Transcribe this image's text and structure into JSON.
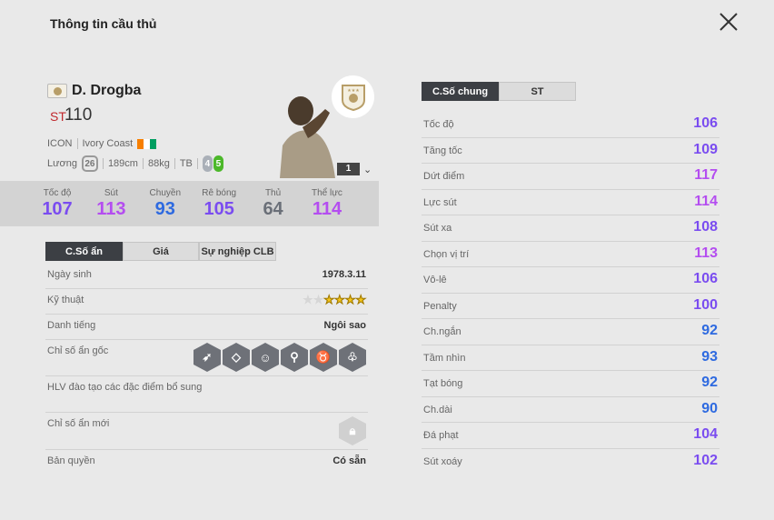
{
  "header": {
    "title": "Thông tin cầu thủ",
    "close_icon": "close-x-icon"
  },
  "player": {
    "name": "D. Drogba",
    "position": "ST",
    "overall": "110",
    "season": "ICON",
    "nation": "Ivory Coast",
    "flag_colors": [
      "#f77f00",
      "#ffffff",
      "#009e60"
    ],
    "salary_label": "Lương",
    "salary": "26",
    "height": "189cm",
    "weight": "88kg",
    "body": "TB",
    "weak_foot": "4",
    "skill_foot": "5",
    "level": "1"
  },
  "summary": [
    {
      "label": "Tốc độ",
      "value": "107",
      "color": "#7a4cf0"
    },
    {
      "label": "Sút",
      "value": "113",
      "color": "#b44df0"
    },
    {
      "label": "Chuyền",
      "value": "93",
      "color": "#2e6ae0"
    },
    {
      "label": "Rê bóng",
      "value": "105",
      "color": "#7a4cf0"
    },
    {
      "label": "Thủ",
      "value": "64",
      "color": "#6a6f78"
    },
    {
      "label": "Thể lực",
      "value": "114",
      "color": "#b44df0"
    }
  ],
  "left_tabs": [
    "C.Số ẩn",
    "Giá",
    "Sự nghiệp CLB"
  ],
  "details": {
    "birth_label": "Ngày sinh",
    "birth": "1978.3.11",
    "skill_label": "Kỹ thuật",
    "skill_stars": 4,
    "skill_max": 6,
    "rep_label": "Danh tiếng",
    "rep": "Ngôi sao",
    "traits_label": "Chỉ số ẩn gốc",
    "traits": [
      "finesse-shot-icon",
      "diamond-icon",
      "head-icon",
      "power-header-icon",
      "bull-icon",
      "lungs-icon"
    ],
    "coach_label": "HLV đào tạo các đặc điểm bổ sung",
    "new_label": "Chỉ số ẩn mới",
    "license_label": "Bản quyền",
    "license": "Có sẵn"
  },
  "right_tabs": [
    "C.Số chung",
    "ST"
  ],
  "stats": [
    {
      "label": "Tốc độ",
      "value": "106",
      "color": "#7a4cf0"
    },
    {
      "label": "Tăng tốc",
      "value": "109",
      "color": "#7a4cf0"
    },
    {
      "label": "Dứt điểm",
      "value": "117",
      "color": "#b44df0"
    },
    {
      "label": "Lực sút",
      "value": "114",
      "color": "#b44df0"
    },
    {
      "label": "Sút xa",
      "value": "108",
      "color": "#7a4cf0"
    },
    {
      "label": "Chọn vị trí",
      "value": "113",
      "color": "#b44df0"
    },
    {
      "label": "Vô-lê",
      "value": "106",
      "color": "#7a4cf0"
    },
    {
      "label": "Penalty",
      "value": "100",
      "color": "#7a4cf0"
    },
    {
      "label": "Ch.ngắn",
      "value": "92",
      "color": "#2e6ae0"
    },
    {
      "label": "Tầm nhìn",
      "value": "93",
      "color": "#2e6ae0"
    },
    {
      "label": "Tạt bóng",
      "value": "92",
      "color": "#2e6ae0"
    },
    {
      "label": "Ch.dài",
      "value": "90",
      "color": "#2e6ae0"
    },
    {
      "label": "Đá phạt",
      "value": "104",
      "color": "#7a4cf0"
    },
    {
      "label": "Sút xoáy",
      "value": "102",
      "color": "#7a4cf0"
    }
  ]
}
